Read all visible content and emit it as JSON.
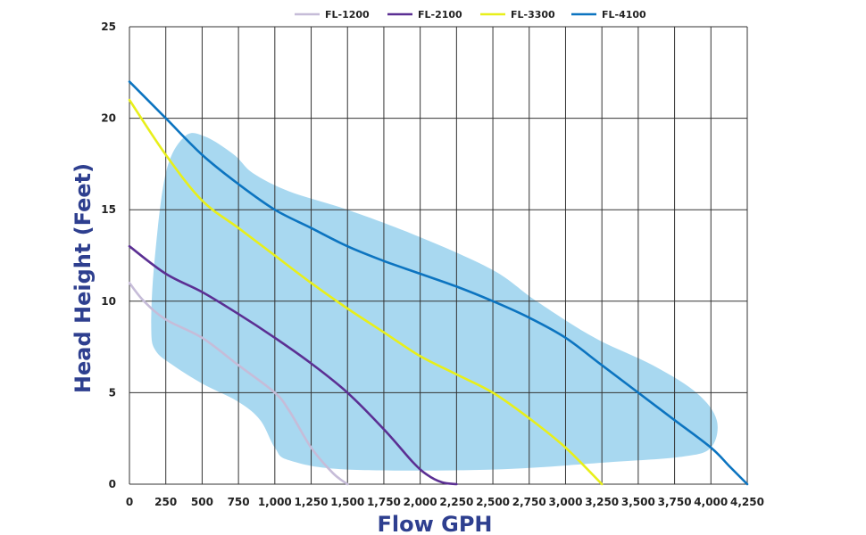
{
  "chart_data": {
    "type": "line",
    "title": "",
    "xlabel": "Flow GPH",
    "ylabel": "Head Height (Feet)",
    "xlim": [
      0,
      4250
    ],
    "ylim": [
      0,
      25
    ],
    "x_ticks": [
      0,
      250,
      500,
      750,
      1000,
      1250,
      1500,
      1750,
      2000,
      2250,
      2500,
      2750,
      3000,
      3250,
      3500,
      3750,
      4000,
      4250
    ],
    "x_tick_labels": [
      "0",
      "250",
      "500",
      "750",
      "1,000",
      "1,250",
      "1,500",
      "1,750",
      "2,000",
      "2,250",
      "2,500",
      "2,750",
      "3,000",
      "3,250",
      "3,500",
      "3,750",
      "4,000",
      "4,250"
    ],
    "y_ticks": [
      0,
      5,
      10,
      15,
      20,
      25
    ],
    "y_tick_labels": [
      "0",
      "5",
      "10",
      "15",
      "20",
      "25"
    ],
    "grid": true,
    "legend_position": "top",
    "region": {
      "fill": "#a8d8f0",
      "points": [
        [
          150,
          8.5
        ],
        [
          170,
          12
        ],
        [
          250,
          17
        ],
        [
          380,
          19
        ],
        [
          520,
          19
        ],
        [
          720,
          18
        ],
        [
          850,
          17
        ],
        [
          1100,
          16
        ],
        [
          1500,
          15
        ],
        [
          2000,
          13.5
        ],
        [
          2500,
          11.7
        ],
        [
          2800,
          10
        ],
        [
          3200,
          8
        ],
        [
          3600,
          6.5
        ],
        [
          3900,
          5
        ],
        [
          4040,
          3.5
        ],
        [
          4000,
          2
        ],
        [
          3800,
          1.5
        ],
        [
          3300,
          1.2
        ],
        [
          2500,
          0.8
        ],
        [
          1500,
          0.8
        ],
        [
          1100,
          1.3
        ],
        [
          1000,
          2
        ],
        [
          900,
          3.5
        ],
        [
          750,
          4.5
        ],
        [
          500,
          5.5
        ],
        [
          300,
          6.5
        ],
        [
          180,
          7.3
        ],
        [
          150,
          8.5
        ]
      ]
    },
    "series": [
      {
        "name": "FL-1200",
        "color": "#c6bcd8",
        "values": [
          [
            0,
            11
          ],
          [
            100,
            10
          ],
          [
            250,
            9
          ],
          [
            500,
            8
          ],
          [
            750,
            6.5
          ],
          [
            1000,
            5
          ],
          [
            1100,
            4
          ],
          [
            1250,
            2
          ],
          [
            1400,
            0.6
          ],
          [
            1500,
            0
          ]
        ]
      },
      {
        "name": "FL-2100",
        "color": "#5b2f93",
        "values": [
          [
            0,
            13
          ],
          [
            250,
            11.5
          ],
          [
            500,
            10.5
          ],
          [
            750,
            9.3
          ],
          [
            1000,
            8
          ],
          [
            1250,
            6.6
          ],
          [
            1500,
            5
          ],
          [
            1750,
            3
          ],
          [
            1950,
            1.2
          ],
          [
            2050,
            0.5
          ],
          [
            2150,
            0.1
          ],
          [
            2250,
            0
          ]
        ]
      },
      {
        "name": "FL-3300",
        "color": "#e8ef1a",
        "values": [
          [
            0,
            21
          ],
          [
            250,
            18
          ],
          [
            500,
            15.5
          ],
          [
            750,
            14
          ],
          [
            1000,
            12.5
          ],
          [
            1250,
            11
          ],
          [
            1500,
            9.6
          ],
          [
            1750,
            8.3
          ],
          [
            2000,
            7
          ],
          [
            2250,
            6
          ],
          [
            2500,
            5
          ],
          [
            2750,
            3.6
          ],
          [
            3000,
            2
          ],
          [
            3250,
            0
          ]
        ]
      },
      {
        "name": "FL-4100",
        "color": "#0c74c0",
        "values": [
          [
            0,
            22
          ],
          [
            250,
            20
          ],
          [
            500,
            18
          ],
          [
            750,
            16.4
          ],
          [
            1000,
            15
          ],
          [
            1250,
            14
          ],
          [
            1500,
            13
          ],
          [
            1750,
            12.2
          ],
          [
            2000,
            11.5
          ],
          [
            2250,
            10.8
          ],
          [
            2500,
            10
          ],
          [
            2750,
            9.1
          ],
          [
            3000,
            8
          ],
          [
            3250,
            6.5
          ],
          [
            3500,
            5
          ],
          [
            3750,
            3.5
          ],
          [
            4000,
            2
          ],
          [
            4125,
            1
          ],
          [
            4250,
            0
          ]
        ]
      }
    ]
  }
}
